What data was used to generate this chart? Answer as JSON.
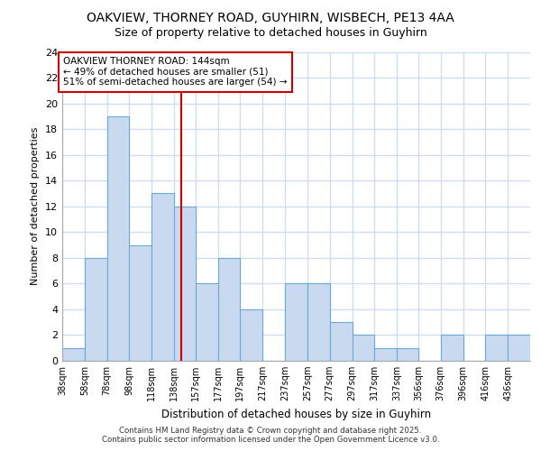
{
  "title_line1": "OAKVIEW, THORNEY ROAD, GUYHIRN, WISBECH, PE13 4AA",
  "title_line2": "Size of property relative to detached houses in Guyhirn",
  "xlabel": "Distribution of detached houses by size in Guyhirn",
  "ylabel": "Number of detached properties",
  "footer": "Contains HM Land Registry data © Crown copyright and database right 2025.\nContains public sector information licensed under the Open Government Licence v3.0.",
  "bin_labels": [
    "38sqm",
    "58sqm",
    "78sqm",
    "98sqm",
    "118sqm",
    "138sqm",
    "157sqm",
    "177sqm",
    "197sqm",
    "217sqm",
    "237sqm",
    "257sqm",
    "277sqm",
    "297sqm",
    "317sqm",
    "337sqm",
    "356sqm",
    "376sqm",
    "396sqm",
    "416sqm",
    "436sqm"
  ],
  "bin_edges": [
    38,
    58,
    78,
    98,
    118,
    138,
    157,
    177,
    197,
    217,
    237,
    257,
    277,
    297,
    317,
    337,
    356,
    376,
    396,
    416,
    436,
    456
  ],
  "counts": [
    1,
    8,
    19,
    9,
    13,
    12,
    6,
    8,
    4,
    0,
    6,
    6,
    3,
    2,
    1,
    1,
    0,
    2,
    0,
    2,
    2
  ],
  "bar_color": "#c8d9f0",
  "bar_edge_color": "#6aaad4",
  "redline_x": 144,
  "annotation_title": "OAKVIEW THORNEY ROAD: 144sqm",
  "annotation_line1": "← 49% of detached houses are smaller (51)",
  "annotation_line2": "51% of semi-detached houses are larger (54) →",
  "redline_color": "#cc0000",
  "ylim": [
    0,
    24
  ],
  "yticks": [
    0,
    2,
    4,
    6,
    8,
    10,
    12,
    14,
    16,
    18,
    20,
    22,
    24
  ],
  "background_color": "#ffffff",
  "grid_color": "#d0ddf0",
  "title_fontsize": 10,
  "subtitle_fontsize": 9
}
